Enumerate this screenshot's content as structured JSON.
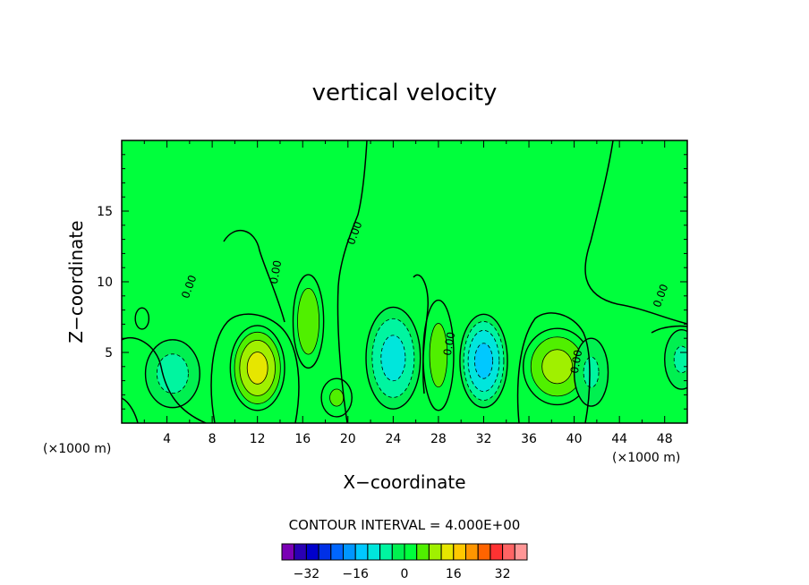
{
  "chart_data": {
    "type": "heatmap",
    "title": "vertical velocity",
    "xlabel": "X−coordinate",
    "ylabel": "Z−coordinate",
    "x_unit_left": "(×1000 m)",
    "x_unit_right": "(×1000 m)",
    "xlim": [
      0,
      50
    ],
    "ylim": [
      0,
      20
    ],
    "x_ticks": [
      4,
      8,
      12,
      16,
      20,
      24,
      28,
      32,
      36,
      40,
      44,
      48
    ],
    "y_ticks": [
      5,
      10,
      15
    ],
    "contour_interval_label": "CONTOUR INTERVAL = 4.000E+00",
    "contour_interval": 4,
    "contour_zero_label": "0.00",
    "colorbar": {
      "levels": [
        -36,
        -32,
        -28,
        -24,
        -20,
        -16,
        -12,
        -8,
        -4,
        0,
        4,
        8,
        12,
        16,
        20,
        24,
        28,
        32,
        36
      ],
      "colors": [
        "#7a00b4",
        "#2a00b4",
        "#0000cc",
        "#0030e6",
        "#0066ff",
        "#0096ff",
        "#00c8ff",
        "#00e6dc",
        "#00f5a0",
        "#00f050",
        "#00ff3c",
        "#50f000",
        "#a0f000",
        "#e6e600",
        "#ffc800",
        "#ff9600",
        "#ff6400",
        "#ff3232",
        "#ff6464",
        "#ff9696"
      ],
      "tick_labels": [
        "−32",
        "−16",
        "0",
        "16",
        "32"
      ],
      "tick_values": [
        -32,
        -16,
        0,
        16,
        32
      ]
    },
    "background_value_color": "#00ff3c",
    "features": [
      {
        "x": 12,
        "z": 3.9,
        "peak": 14,
        "sx": 1.6,
        "sz": 2.0
      },
      {
        "x": 16.5,
        "z": 7.2,
        "peak": 8,
        "sx": 0.9,
        "sz": 2.2
      },
      {
        "x": 38.5,
        "z": 4.0,
        "peak": 10,
        "sx": 2.0,
        "sz": 1.8
      },
      {
        "x": 28,
        "z": 4.8,
        "peak": 6,
        "sx": 0.9,
        "sz": 2.6
      },
      {
        "x": 19,
        "z": 1.8,
        "peak": 5,
        "sx": 0.9,
        "sz": 0.9
      },
      {
        "x": 24,
        "z": 4.6,
        "peak": -10,
        "sx": 1.6,
        "sz": 2.4
      },
      {
        "x": 32,
        "z": 4.4,
        "peak": -14,
        "sx": 1.4,
        "sz": 2.2
      },
      {
        "x": 4.5,
        "z": 3.5,
        "peak": -6,
        "sx": 1.6,
        "sz": 1.6
      },
      {
        "x": 41.5,
        "z": 3.6,
        "peak": -5,
        "sx": 1.0,
        "sz": 1.6
      },
      {
        "x": 49.5,
        "z": 4.5,
        "peak": -5,
        "sx": 1.0,
        "sz": 1.4
      },
      {
        "x": 1.8,
        "z": 7.4,
        "peak": 3,
        "sx": 0.4,
        "sz": 0.5
      }
    ]
  }
}
